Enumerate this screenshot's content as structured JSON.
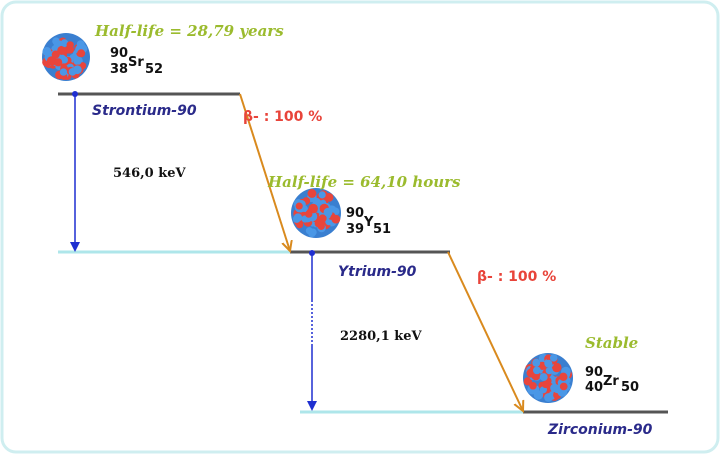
{
  "colors": {
    "half_life": "#9bbb2e",
    "name": "#2a2a8a",
    "beta": "#e8443a",
    "gamma_arrow": "#1f2fd0",
    "beta_arrow": "#d98a1e",
    "level": "#555555",
    "baseline": "#aee6ea",
    "frame": "#cfeef0"
  },
  "strontium": {
    "half_life": "Half-life = 28,79 years",
    "mass": "90",
    "atomic": "38",
    "symbol": "Sr",
    "neutrons": "52",
    "name": "Strontium-90"
  },
  "decay1": {
    "beta": "β- : 100 %",
    "energy": "546,0 keV"
  },
  "yttrium": {
    "half_life": "Half-life = 64,10 hours",
    "mass": "90",
    "atomic": "39",
    "symbol": "Y",
    "neutrons": "51",
    "name": "Ytrium-90"
  },
  "decay2": {
    "beta": "β- : 100 %",
    "energy": "2280,1 keV"
  },
  "zirconium": {
    "half_life": "Stable",
    "mass": "90",
    "atomic": "40",
    "symbol": "Zr",
    "neutrons": "50",
    "name": "Zirconium-90"
  }
}
